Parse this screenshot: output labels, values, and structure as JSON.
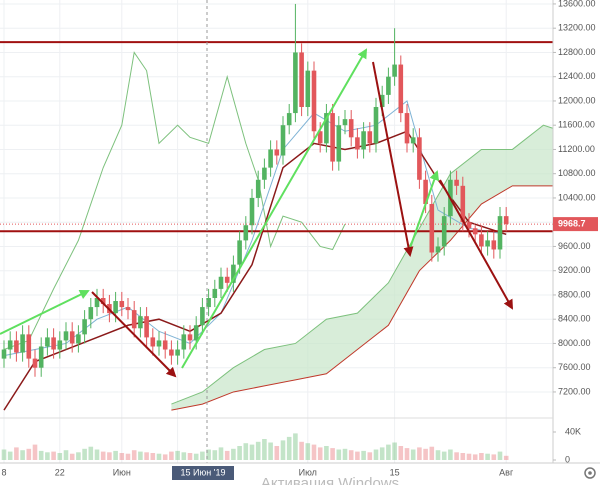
{
  "chart_data": {
    "type": "candlestick",
    "categories": [
      "8",
      null,
      null,
      null,
      null,
      null,
      null,
      null,
      null,
      "22",
      null,
      null,
      null,
      null,
      null,
      null,
      null,
      null,
      null,
      "Июн",
      null,
      null,
      null,
      null,
      null,
      null,
      null,
      null,
      "10",
      null,
      null,
      null,
      null,
      null,
      null,
      null,
      null,
      null,
      null,
      null,
      null,
      null,
      null,
      null,
      null,
      null,
      null,
      null,
      null,
      "Июл",
      null,
      null,
      null,
      null,
      null,
      null,
      null,
      null,
      null,
      null,
      null,
      null,
      null,
      "15",
      null,
      null,
      null,
      null,
      null,
      null,
      null,
      null,
      null,
      null,
      null,
      null,
      null,
      null,
      null,
      null,
      null,
      "Авг"
    ],
    "open": [
      7750,
      7900,
      8050,
      7850,
      8150,
      7750,
      7600,
      7950,
      8100,
      7900,
      8050,
      8200,
      8000,
      8150,
      8400,
      8600,
      8750,
      8650,
      8500,
      8700,
      8600,
      8550,
      8250,
      8450,
      8100,
      7950,
      8050,
      7900,
      7800,
      7900,
      8150,
      8050,
      8300,
      8600,
      8750,
      8900,
      9100,
      9000,
      9300,
      9700,
      9950,
      10400,
      10700,
      10900,
      11200,
      11100,
      11600,
      11800,
      12800,
      11900,
      12500,
      11500,
      11300,
      11800,
      11000,
      11600,
      11700,
      11400,
      11200,
      11500,
      11300,
      11900,
      12100,
      12400,
      12600,
      11800,
      11300,
      11400,
      10700,
      10300,
      9500,
      9600,
      10100,
      10700,
      10600,
      10000,
      9900,
      9800,
      9600,
      9700,
      9550,
      10100
    ],
    "high": [
      8050,
      8200,
      8200,
      8300,
      8300,
      7900,
      8100,
      8250,
      8250,
      8200,
      8350,
      8350,
      8300,
      8550,
      8750,
      8900,
      8900,
      8800,
      8850,
      8850,
      8750,
      8700,
      8600,
      8600,
      8250,
      8200,
      8200,
      8050,
      8050,
      8300,
      8300,
      8450,
      8750,
      8900,
      9050,
      9250,
      9250,
      9450,
      9850,
      10100,
      10550,
      10850,
      11050,
      11350,
      11350,
      11750,
      11950,
      13600,
      12950,
      12650,
      12650,
      11650,
      11950,
      11950,
      11750,
      11850,
      11850,
      11550,
      11650,
      11650,
      12050,
      12250,
      12550,
      13200,
      12750,
      11950,
      11550,
      11550,
      10850,
      10450,
      9750,
      10250,
      10850,
      10850,
      10750,
      10150,
      9950,
      9950,
      9850,
      9850,
      10250,
      10250
    ],
    "low": [
      7600,
      7750,
      7700,
      7700,
      7600,
      7450,
      7450,
      7800,
      7750,
      7750,
      7900,
      7850,
      7850,
      8000,
      8250,
      8450,
      8500,
      8350,
      8350,
      8450,
      8400,
      8100,
      8100,
      7950,
      7800,
      7800,
      7750,
      7650,
      7650,
      7750,
      7900,
      7900,
      8150,
      8450,
      8600,
      8750,
      8850,
      8850,
      9150,
      9550,
      9800,
      10250,
      10550,
      10750,
      10950,
      10950,
      11450,
      11650,
      11750,
      11750,
      11350,
      11150,
      11150,
      10850,
      10850,
      11450,
      11250,
      11050,
      11050,
      11150,
      11150,
      11750,
      11950,
      12250,
      11650,
      11150,
      11150,
      10550,
      10150,
      9350,
      9350,
      9450,
      9950,
      10450,
      9850,
      9750,
      9650,
      9450,
      9450,
      9400,
      9400,
      9850
    ],
    "close": [
      7900,
      8050,
      7850,
      8150,
      7750,
      7600,
      7950,
      8100,
      7900,
      8050,
      8200,
      8000,
      8150,
      8400,
      8600,
      8750,
      8650,
      8500,
      8700,
      8600,
      8550,
      8250,
      8450,
      8100,
      7950,
      8050,
      7900,
      7800,
      7900,
      8150,
      8050,
      8300,
      8600,
      8750,
      8900,
      9100,
      9000,
      9300,
      9700,
      9950,
      10400,
      10700,
      10900,
      11200,
      11100,
      11600,
      11800,
      12800,
      11900,
      12500,
      11500,
      11300,
      11800,
      11000,
      11600,
      11700,
      11400,
      11200,
      11500,
      11300,
      11900,
      12100,
      12400,
      12600,
      11800,
      11300,
      11400,
      10700,
      10300,
      9500,
      9600,
      10100,
      10700,
      10600,
      10000,
      9900,
      9800,
      9600,
      9700,
      9550,
      10100,
      9968.7
    ],
    "volume": [
      15000,
      12000,
      18000,
      14000,
      16000,
      22000,
      13000,
      11000,
      12000,
      10000,
      14000,
      9000,
      11000,
      16000,
      19000,
      15000,
      12000,
      11000,
      13000,
      10000,
      9000,
      14000,
      12000,
      11000,
      10000,
      9000,
      8000,
      12000,
      13000,
      11000,
      10000,
      9000,
      12000,
      15000,
      14000,
      18000,
      13000,
      16000,
      20000,
      24000,
      22000,
      26000,
      30000,
      25000,
      20000,
      28000,
      33000,
      38000,
      26000,
      24000,
      22000,
      18000,
      20000,
      17000,
      15000,
      16000,
      14000,
      12000,
      13000,
      11000,
      15000,
      18000,
      22000,
      25000,
      20000,
      17000,
      15000,
      18000,
      16000,
      19000,
      14000,
      12000,
      15000,
      11000,
      10000,
      9000,
      8000,
      10000,
      9000,
      8000,
      12000,
      6000
    ],
    "up_color": "#53b361",
    "down_color": "#e2575b",
    "ylim": [
      6820,
      13665
    ],
    "yticks": [
      {
        "value": 7200,
        "label": "7200.00"
      },
      {
        "value": 7600,
        "label": "7600.00"
      },
      {
        "value": 8000,
        "label": "8000.00"
      },
      {
        "value": 8400,
        "label": "8400.00"
      },
      {
        "value": 8800,
        "label": "8800.00"
      },
      {
        "value": 9200,
        "label": "9200.00"
      },
      {
        "value": 9600,
        "label": "9600.00"
      },
      {
        "value": 10000,
        "label": "10000.00"
      },
      {
        "value": 10400,
        "label": "10400.00"
      },
      {
        "value": 10800,
        "label": "10800.00"
      },
      {
        "value": 11200,
        "label": "11200.00"
      },
      {
        "value": 11600,
        "label": "11600.00"
      },
      {
        "value": 12000,
        "label": "12000.00"
      },
      {
        "value": 12400,
        "label": "12400.00"
      },
      {
        "value": 12800,
        "label": "12800.00"
      },
      {
        "value": 13200,
        "label": "13200.00"
      },
      {
        "value": 13600,
        "label": "13600.00"
      }
    ],
    "y2lim": [
      0,
      50000
    ],
    "y2ticks": [
      0,
      {
        "value": 40000,
        "label": "40K"
      }
    ],
    "grid": true,
    "levels": [
      12970,
      9850
    ],
    "level_color": "#a01010",
    "base_line": {
      "color": "#8b1a1a",
      "x": [
        0,
        5,
        10,
        15,
        20,
        25,
        30,
        35,
        40,
        45,
        50,
        55,
        60,
        65,
        70,
        75,
        81
      ],
      "values": [
        6900,
        7700,
        7900,
        8100,
        8300,
        8400,
        8200,
        8500,
        9300,
        10900,
        11300,
        11200,
        11300,
        11500,
        10700,
        10000,
        9800
      ]
    },
    "conversion_line": {
      "color": "#7fb3d5",
      "x": [
        0,
        5,
        10,
        15,
        20,
        25,
        30,
        35,
        40,
        45,
        50,
        55,
        60,
        65,
        70,
        75,
        81
      ],
      "values": [
        7800,
        7900,
        8000,
        8400,
        8600,
        8200,
        8000,
        8500,
        9700,
        11200,
        11800,
        11500,
        11600,
        12000,
        10200,
        9900,
        9800
      ]
    },
    "lagging_line": {
      "color": "#7dc17d",
      "x": [
        0,
        4,
        8,
        12,
        16,
        19,
        21,
        23,
        25,
        28,
        30,
        33,
        36,
        39,
        41,
        43,
        45,
        48,
        51,
        53,
        55
      ],
      "values": [
        7900,
        8050,
        8900,
        9700,
        10900,
        11600,
        12800,
        12500,
        11300,
        11600,
        11400,
        11300,
        12400,
        11300,
        10700,
        9600,
        10100,
        10000,
        9600,
        9550,
        9968.7
      ]
    },
    "cloud": {
      "fill": "#c8e6c9",
      "color_a": "#7dc17d",
      "color_b": "#c0392b",
      "x": [
        27,
        32,
        37,
        42,
        47,
        52,
        57,
        62,
        67,
        72,
        77,
        82,
        87,
        90
      ],
      "span_a": [
        7000,
        7200,
        7600,
        7900,
        8000,
        8400,
        8500,
        9000,
        9900,
        10800,
        11200,
        11200,
        11600,
        11500
      ],
      "span_b": [
        6900,
        7000,
        7200,
        7300,
        7400,
        7500,
        7900,
        8300,
        9200,
        9700,
        10300,
        10600,
        10600,
        10600
      ]
    },
    "crosshair_label": "15 Июн '19",
    "watermark": "Активация Windows"
  }
}
